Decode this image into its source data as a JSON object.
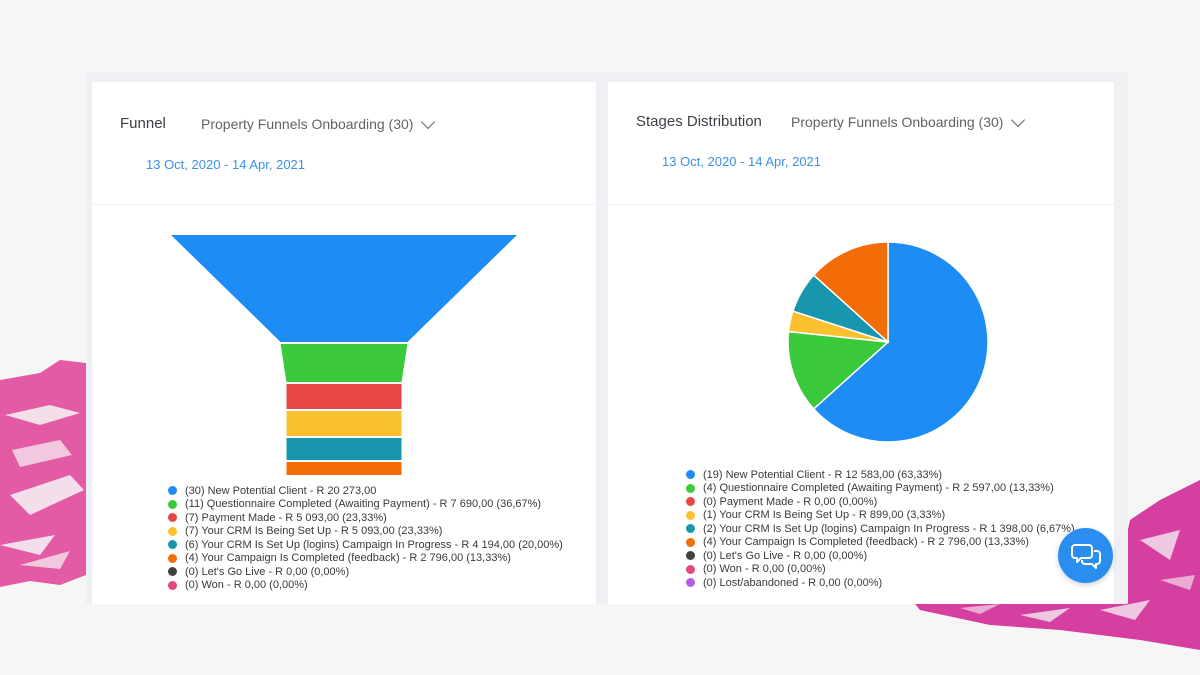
{
  "colors": {
    "blue": "#1d8cf5",
    "green": "#39c93b",
    "red": "#e84545",
    "yellow": "#fbc02d",
    "teal": "#1796ae",
    "orange": "#f26c08",
    "dark": "#424242",
    "pink": "#e2487a",
    "purple": "#b65de8",
    "accent": "#3e8fe6"
  },
  "funnel_panel": {
    "title": "Funnel",
    "selector": "Property Funnels Onboarding (30)",
    "date_range": "13 Oct, 2020 - 14 Apr, 2021"
  },
  "stages_panel": {
    "title": "Stages Distribution",
    "selector": "Property Funnels Onboarding (30)",
    "date_range": "13 Oct, 2020 - 14 Apr, 2021"
  },
  "chart_data": [
    {
      "type": "funnel",
      "title": "Funnel",
      "categories": [
        "New Potential Client",
        "Questionnaire Completed (Awaiting Payment)",
        "Payment Made",
        "Your CRM Is Being Set Up",
        "Your CRM Is Set Up (logins) Campaign In Progress",
        "Your Campaign Is Completed (feedback)",
        "Let's Go Live",
        "Won"
      ],
      "values": [
        30,
        11,
        7,
        7,
        6,
        4,
        0,
        0
      ],
      "legend": [
        {
          "label": "(30) New Potential Client - R 20 273,00",
          "color": "blue"
        },
        {
          "label": "(11) Questionnaire Completed (Awaiting Payment) - R 7 690,00 (36,67%)",
          "color": "green"
        },
        {
          "label": "(7) Payment Made - R 5 093,00 (23,33%)",
          "color": "red"
        },
        {
          "label": "(7) Your CRM Is Being Set Up - R 5 093,00 (23,33%)",
          "color": "yellow"
        },
        {
          "label": "(6) Your CRM Is Set Up (logins) Campaign In Progress - R 4 194,00 (20,00%)",
          "color": "teal"
        },
        {
          "label": "(4) Your Campaign Is Completed (feedback) - R 2 796,00 (13,33%)",
          "color": "orange"
        },
        {
          "label": "(0) Let's Go Live - R 0,00 (0,00%)",
          "color": "dark"
        },
        {
          "label": "(0) Won - R 0,00 (0,00%)",
          "color": "pink"
        }
      ]
    },
    {
      "type": "pie",
      "title": "Stages Distribution",
      "categories": [
        "New Potential Client",
        "Questionnaire Completed (Awaiting Payment)",
        "Payment Made",
        "Your CRM Is Being Set Up",
        "Your CRM Is Set Up (logins) Campaign In Progress",
        "Your Campaign Is Completed (feedback)",
        "Let's Go Live",
        "Won",
        "Lost/abandoned"
      ],
      "values": [
        19,
        4,
        0,
        1,
        2,
        4,
        0,
        0,
        0
      ],
      "percentages": [
        63.33,
        13.33,
        0,
        3.33,
        6.67,
        13.33,
        0,
        0,
        0
      ],
      "legend": [
        {
          "label": "(19) New Potential Client - R 12 583,00 (63,33%)",
          "color": "blue"
        },
        {
          "label": "(4) Questionnaire Completed (Awaiting Payment) - R 2 597,00 (13,33%)",
          "color": "green"
        },
        {
          "label": "(0) Payment Made - R 0,00 (0,00%)",
          "color": "red"
        },
        {
          "label": "(1) Your CRM Is Being Set Up - R 899,00 (3,33%)",
          "color": "yellow"
        },
        {
          "label": "(2) Your CRM Is Set Up (logins) Campaign In Progress - R 1 398,00 (6,67%)",
          "color": "teal"
        },
        {
          "label": "(4) Your Campaign Is Completed (feedback) - R 2 796,00 (13,33%)",
          "color": "orange"
        },
        {
          "label": "(0) Let's Go Live - R 0,00 (0,00%)",
          "color": "dark"
        },
        {
          "label": "(0) Won - R 0,00 (0,00%)",
          "color": "pink"
        },
        {
          "label": "(0) Lost/abandoned - R 0,00 (0,00%)",
          "color": "purple"
        }
      ]
    }
  ]
}
